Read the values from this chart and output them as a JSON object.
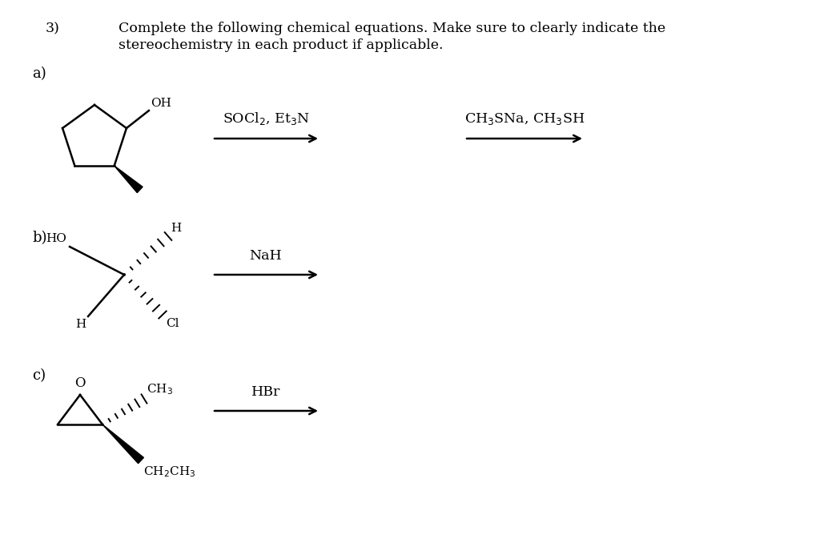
{
  "bg_color": "#ffffff",
  "text_color": "#000000",
  "title_num": "3)",
  "title_text": "Complete the following chemical equations. Make sure to clearly indicate the",
  "title_text2": "stereochemistry in each product if applicable.",
  "label_a": "a)",
  "label_b": "b)",
  "label_c": "c)",
  "reagent_a1": "SOCl$_2$, Et$_3$N",
  "reagent_a2": "CH$_3$SNa, CH$_3$SH",
  "reagent_b": "NaH",
  "reagent_c": "HBr",
  "font_size_title": 12.5,
  "font_size_label": 13,
  "font_size_reagent": 12.5,
  "font_size_struct": 11
}
